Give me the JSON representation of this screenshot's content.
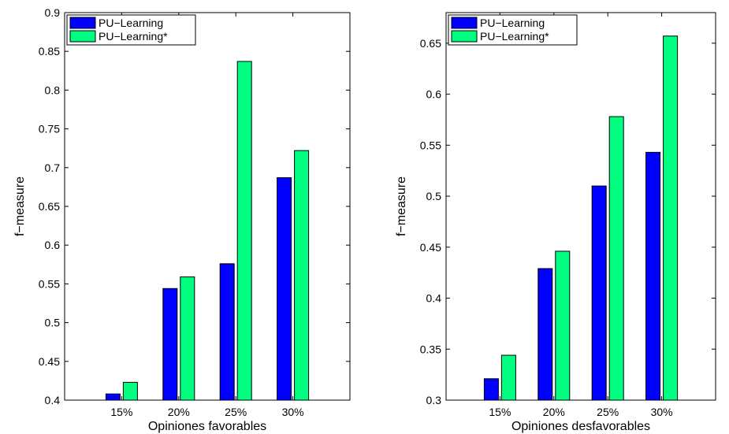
{
  "chart_data": [
    {
      "type": "bar",
      "categories": [
        "15%",
        "20%",
        "25%",
        "30%"
      ],
      "series": [
        {
          "name": "PU−Learning",
          "color": "#0000ff",
          "values": [
            0.408,
            0.544,
            0.576,
            0.687
          ]
        },
        {
          "name": "PU−Learning*",
          "color": "#00ff80",
          "values": [
            0.423,
            0.559,
            0.837,
            0.722
          ]
        }
      ],
      "xlabel": "Opiniones favorables",
      "ylabel": "f−measure",
      "ylim": [
        0.4,
        0.9
      ],
      "yticks": [
        "0.4",
        "0.45",
        "0.5",
        "0.55",
        "0.6",
        "0.65",
        "0.7",
        "0.75",
        "0.8",
        "0.85",
        "0.9"
      ],
      "xlim": [
        0,
        5
      ],
      "grid": false,
      "legend": "top-left"
    },
    {
      "type": "bar",
      "categories": [
        "15%",
        "20%",
        "25%",
        "30%"
      ],
      "series": [
        {
          "name": "PU−Learning",
          "color": "#0000ff",
          "values": [
            0.321,
            0.429,
            0.51,
            0.543
          ]
        },
        {
          "name": "PU−Learning*",
          "color": "#00ff80",
          "values": [
            0.344,
            0.446,
            0.578,
            0.657
          ]
        }
      ],
      "xlabel": "Opiniones desfavorables",
      "ylabel": "f−measure",
      "ylim": [
        0.3,
        0.68
      ],
      "yticks": [
        "0.3",
        "0.35",
        "0.4",
        "0.45",
        "0.5",
        "0.55",
        "0.6",
        "0.65"
      ],
      "xlim": [
        0,
        5
      ],
      "grid": false,
      "legend": "top-left"
    }
  ]
}
